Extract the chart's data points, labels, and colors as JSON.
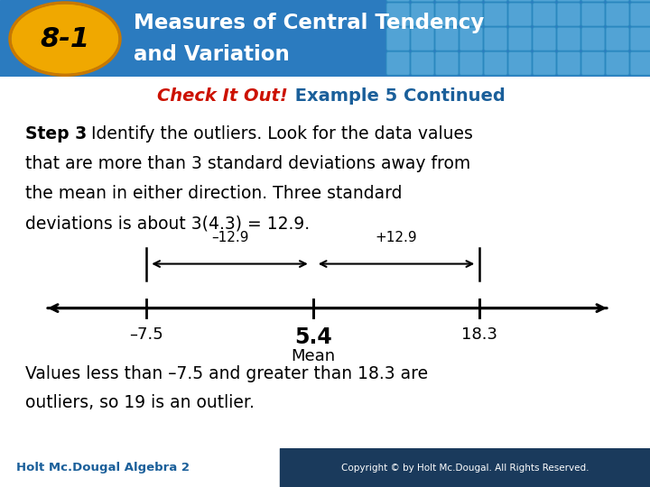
{
  "title_badge": "8-1",
  "header_bg_color": "#2b7bbf",
  "header_bg_dark": "#1a5f9a",
  "badge_color": "#f0a800",
  "badge_border": "#c87800",
  "check_it_out_text": "Check It Out!",
  "check_it_out_color": "#cc1100",
  "example_text": " Example 5 Continued",
  "example_color": "#1a5f9a",
  "step_bold": "Step 3",
  "step_rest": " Identify the outliers. Look for the data values",
  "body_line2": "that are more than 3 standard deviations away from",
  "body_line3": "the mean in either direction. Three standard",
  "body_line4": "deviations is about 3(4.3) = 12.9.",
  "minus_label": "–12.9",
  "plus_label": "+12.9",
  "mean_label": "5.4",
  "mean_sublabel": "Mean",
  "lower_label": "–7.5",
  "upper_label": "18.3",
  "conclusion1": "Values less than –7.5 and greater than 18.3 are",
  "conclusion2": "outliers, so 19 is an outlier.",
  "footer_left": "Holt Mc.Dougal Algebra 2",
  "footer_left_color": "#1a5f9a",
  "footer_right": "Copyright © by Holt Mc.Dougal. All Rights Reserved.",
  "footer_right_bg": "#1a3a5c",
  "bg_color": "#ffffff",
  "mean_val": 5.4,
  "lower_val": -7.5,
  "upper_val": 18.3,
  "nl_min": -15,
  "nl_max": 28
}
